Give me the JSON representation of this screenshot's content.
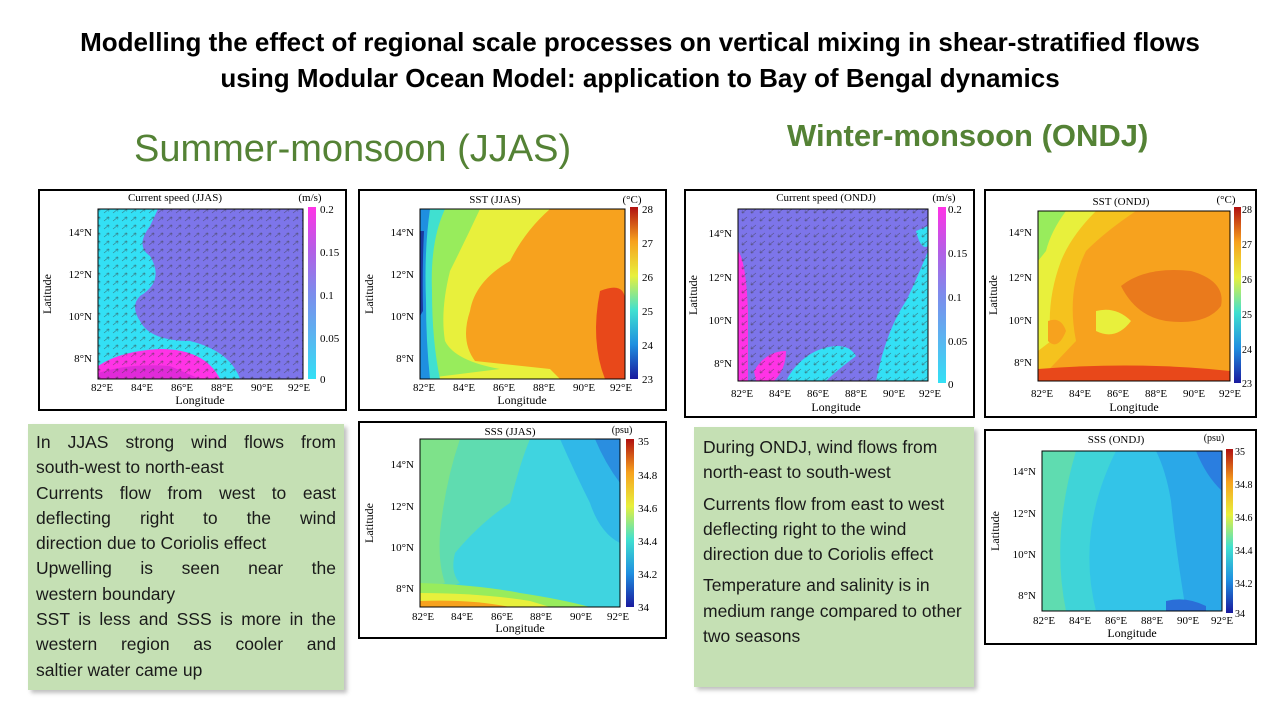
{
  "title": {
    "line1": "Modelling the effect of regional scale processes on vertical mixing in shear-stratified flows",
    "line2": "using Modular Ocean Model: application to Bay of Bengal dynamics"
  },
  "seasons": {
    "summer": "Summer-monsoon (JJAS)",
    "winter": "Winter-monsoon (ONDJ)"
  },
  "common_axes": {
    "xlabel": "Longitude",
    "ylabel": "Latitude",
    "xticks": [
      "82°E",
      "84°E",
      "86°E",
      "88°E",
      "90°E",
      "92°E"
    ],
    "yticks": [
      "8°N",
      "10°N",
      "12°N",
      "14°N"
    ]
  },
  "panels": {
    "cur_jjas": {
      "title": "Current speed (JJAS)",
      "unit": "(m/s)",
      "cbar_ticks": [
        "0.2",
        "0.15",
        "0.1",
        "0.05",
        "0"
      ]
    },
    "sst_jjas": {
      "title": "SST (JJAS)",
      "unit": "(°C)",
      "cbar_ticks": [
        "28",
        "27",
        "26",
        "25",
        "24",
        "23"
      ]
    },
    "sss_jjas": {
      "title": "SSS (JJAS)",
      "unit": "(psu)",
      "cbar_ticks": [
        "35",
        "34.8",
        "34.6",
        "34.4",
        "34.2",
        "34"
      ]
    },
    "cur_ondj": {
      "title": "Current speed (ONDJ)",
      "unit": "(m/s)",
      "cbar_ticks": [
        "0.2",
        "0.15",
        "0.1",
        "0.05",
        "0"
      ]
    },
    "sst_ondj": {
      "title": "SST (ONDJ)",
      "unit": "(°C)",
      "cbar_ticks": [
        "28",
        "27",
        "26",
        "25",
        "24",
        "23"
      ]
    },
    "sss_ondj": {
      "title": "SSS (ONDJ)",
      "unit": "(psu)",
      "cbar_ticks": [
        "35",
        "34.8",
        "34.6",
        "34.4",
        "34.2",
        "34"
      ]
    }
  },
  "notes": {
    "summer": [
      "In JJAS strong wind flows from",
      "south-west to north-east",
      "Currents flow from west to east",
      "deflecting right to the wind",
      "direction due to Coriolis effect",
      "Upwelling is seen near the",
      "western boundary",
      "SST is less and SSS is more in the",
      "western region as cooler and",
      "saltier water came up"
    ],
    "winter": [
      "During ONDJ, wind flows from north-east to south-west",
      "Currents flow from east to west deflecting right to the wind direction due to Coriolis effect",
      "Temperature and salinity is in medium range compared to other two seasons"
    ]
  }
}
